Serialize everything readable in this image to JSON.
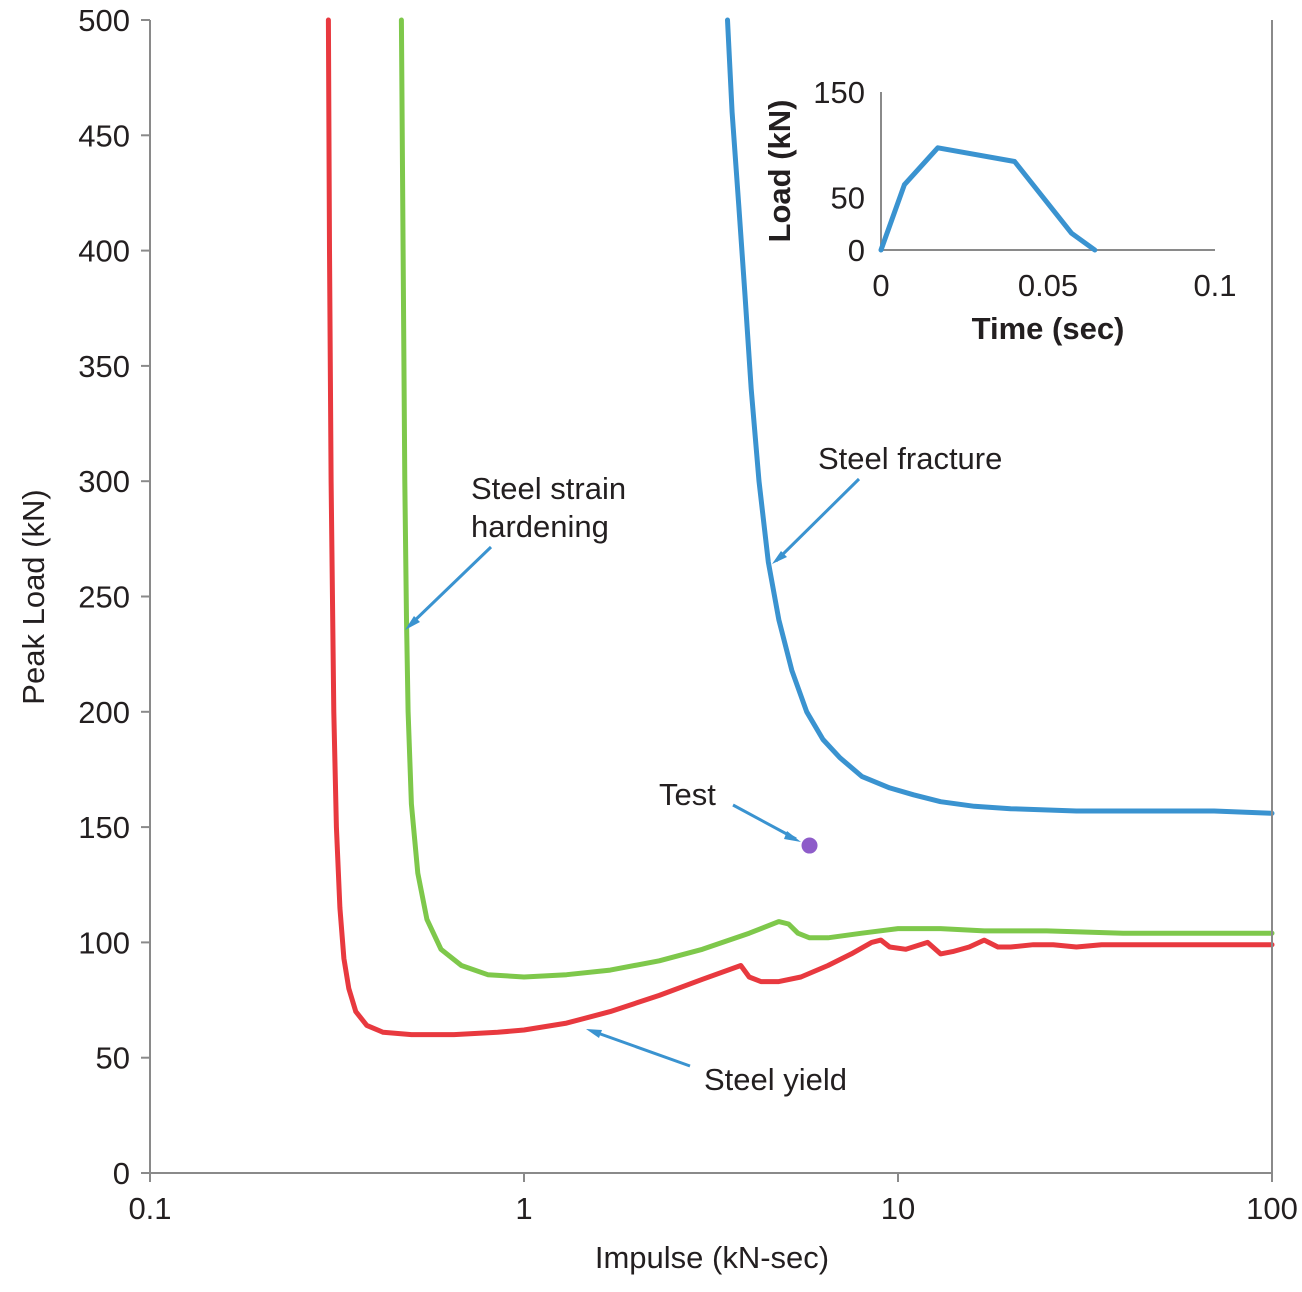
{
  "chart_data": [
    {
      "type": "line",
      "xlabel": "Impulse (kN-sec)",
      "ylabel": "Peak Load (kN)",
      "xscale": "log",
      "xlim": [
        0.1,
        100
      ],
      "ylim": [
        0,
        500
      ],
      "xticks": [
        0.1,
        1,
        10,
        100
      ],
      "xtick_labels": [
        "0.1",
        "1",
        "10",
        "100"
      ],
      "yticks": [
        0,
        50,
        100,
        150,
        200,
        250,
        300,
        350,
        400,
        450,
        500
      ],
      "ytick_labels": [
        "0",
        "50",
        "100",
        "150",
        "200",
        "250",
        "300",
        "350",
        "400",
        "450",
        "500"
      ],
      "grid": false,
      "series": [
        {
          "name": "Steel yield",
          "color": "#e8393f",
          "points": [
            [
              0.3,
              500
            ],
            [
              0.302,
              400
            ],
            [
              0.305,
              300
            ],
            [
              0.31,
              200
            ],
            [
              0.315,
              150
            ],
            [
              0.322,
              115
            ],
            [
              0.33,
              93
            ],
            [
              0.34,
              80
            ],
            [
              0.355,
              70
            ],
            [
              0.38,
              64
            ],
            [
              0.42,
              61
            ],
            [
              0.5,
              60
            ],
            [
              0.65,
              60
            ],
            [
              0.85,
              61
            ],
            [
              1.0,
              62
            ],
            [
              1.3,
              65
            ],
            [
              1.7,
              70
            ],
            [
              2.3,
              77
            ],
            [
              3.0,
              84
            ],
            [
              3.8,
              90
            ],
            [
              4.0,
              85
            ],
            [
              4.3,
              83
            ],
            [
              4.8,
              83
            ],
            [
              5.5,
              85
            ],
            [
              6.5,
              90
            ],
            [
              7.5,
              95
            ],
            [
              8.5,
              100
            ],
            [
              9.0,
              101
            ],
            [
              9.5,
              98
            ],
            [
              10.5,
              97
            ],
            [
              12.0,
              100
            ],
            [
              13.0,
              95
            ],
            [
              14.0,
              96
            ],
            [
              15.5,
              98
            ],
            [
              17.0,
              101
            ],
            [
              18.5,
              98
            ],
            [
              20.0,
              98
            ],
            [
              23.0,
              99
            ],
            [
              26.0,
              99
            ],
            [
              30.0,
              98
            ],
            [
              35.0,
              99
            ],
            [
              50.0,
              99
            ],
            [
              70.0,
              99
            ],
            [
              100.0,
              99
            ]
          ]
        },
        {
          "name": "Steel strain hardening",
          "color": "#7ec84b",
          "points": [
            [
              0.47,
              500
            ],
            [
              0.475,
              400
            ],
            [
              0.48,
              300
            ],
            [
              0.485,
              240
            ],
            [
              0.49,
              200
            ],
            [
              0.5,
              160
            ],
            [
              0.52,
              130
            ],
            [
              0.55,
              110
            ],
            [
              0.6,
              97
            ],
            [
              0.68,
              90
            ],
            [
              0.8,
              86
            ],
            [
              1.0,
              85
            ],
            [
              1.3,
              86
            ],
            [
              1.7,
              88
            ],
            [
              2.3,
              92
            ],
            [
              3.0,
              97
            ],
            [
              4.0,
              104
            ],
            [
              4.8,
              109
            ],
            [
              5.1,
              108
            ],
            [
              5.4,
              104
            ],
            [
              5.8,
              102
            ],
            [
              6.5,
              102
            ],
            [
              8.0,
              104
            ],
            [
              10.0,
              106
            ],
            [
              13.0,
              106
            ],
            [
              17.0,
              105
            ],
            [
              25.0,
              105
            ],
            [
              40.0,
              104
            ],
            [
              100.0,
              104
            ]
          ]
        },
        {
          "name": "Steel fracture",
          "color": "#3a93d0",
          "points": [
            [
              3.5,
              500
            ],
            [
              3.6,
              460
            ],
            [
              3.75,
              420
            ],
            [
              3.9,
              380
            ],
            [
              4.05,
              340
            ],
            [
              4.25,
              300
            ],
            [
              4.5,
              265
            ],
            [
              4.8,
              240
            ],
            [
              5.2,
              218
            ],
            [
              5.7,
              200
            ],
            [
              6.3,
              188
            ],
            [
              7.0,
              180
            ],
            [
              8.0,
              172
            ],
            [
              9.5,
              167
            ],
            [
              11.0,
              164
            ],
            [
              13.0,
              161
            ],
            [
              16.0,
              159
            ],
            [
              20.0,
              158
            ],
            [
              30.0,
              157
            ],
            [
              50.0,
              157
            ],
            [
              70.0,
              157
            ],
            [
              100.0,
              156
            ]
          ]
        }
      ],
      "markers": [
        {
          "name": "Test",
          "x": 5.8,
          "y": 142,
          "color": "#8e5cc9"
        }
      ],
      "annotations": [
        {
          "text": "Steel fracture"
        },
        {
          "text": "Steel strain hardening"
        },
        {
          "text": "Test"
        },
        {
          "text": "Steel yield"
        }
      ]
    },
    {
      "type": "line",
      "role": "inset",
      "xlabel": "Time (sec)",
      "ylabel": "Load (kN)",
      "xlim": [
        0,
        0.1
      ],
      "ylim": [
        0,
        150
      ],
      "xticks": [
        0,
        0.05,
        0.1
      ],
      "xtick_labels": [
        "0",
        "0.05",
        "0.1"
      ],
      "yticks": [
        0,
        50,
        150
      ],
      "ytick_labels": [
        "0",
        "50",
        "150"
      ],
      "series": [
        {
          "color": "#3a93d0",
          "points": [
            [
              0,
              0
            ],
            [
              0.007,
              62
            ],
            [
              0.017,
              97
            ],
            [
              0.04,
              84
            ],
            [
              0.057,
              16
            ],
            [
              0.064,
              0
            ]
          ]
        }
      ]
    }
  ]
}
